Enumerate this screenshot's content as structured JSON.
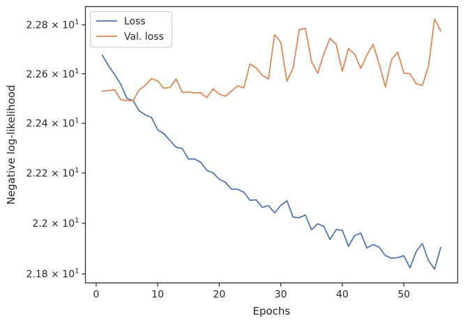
{
  "chart_data": {
    "type": "line",
    "title": "",
    "xlabel": "Epochs",
    "ylabel": "Negative log-likelihood",
    "xlim": [
      -1.75,
      58.75
    ],
    "ylim": [
      21.765,
      22.875
    ],
    "yscale": "log",
    "grid": false,
    "legend": "top-left",
    "x_ticks": [
      0,
      10,
      20,
      30,
      40,
      50
    ],
    "x_tick_labels": [
      "0",
      "10",
      "20",
      "30",
      "40",
      "50"
    ],
    "y_ticks": [
      21.8,
      22.0,
      22.2,
      22.4,
      22.6,
      22.8
    ],
    "y_tick_mantissas": [
      "2.18",
      "2.2",
      "2.22",
      "2.24",
      "2.26",
      "2.28"
    ],
    "y_tick_times": "×",
    "y_tick_base": "10",
    "y_tick_exp": "1",
    "series": [
      {
        "name": "Loss",
        "color": "#4c72b0",
        "x": [
          1,
          2,
          3,
          4,
          5,
          6,
          7,
          8,
          9,
          10,
          11,
          12,
          13,
          14,
          15,
          16,
          17,
          18,
          19,
          20,
          21,
          22,
          23,
          24,
          25,
          26,
          27,
          28,
          29,
          30,
          31,
          32,
          33,
          34,
          35,
          36,
          37,
          38,
          39,
          40,
          41,
          42,
          43,
          44,
          45,
          46,
          47,
          48,
          49,
          50,
          51,
          52,
          53,
          54,
          55,
          56
        ],
        "y": [
          22.676,
          22.633,
          22.597,
          22.557,
          22.5,
          22.491,
          22.45,
          22.433,
          22.423,
          22.373,
          22.358,
          22.33,
          22.303,
          22.298,
          22.256,
          22.256,
          22.243,
          22.21,
          22.2,
          22.175,
          22.163,
          22.135,
          22.135,
          22.123,
          22.091,
          22.093,
          22.063,
          22.07,
          22.041,
          22.071,
          22.089,
          22.024,
          22.022,
          22.033,
          21.974,
          21.998,
          21.987,
          21.936,
          21.975,
          21.972,
          21.909,
          21.951,
          21.961,
          21.902,
          21.916,
          21.905,
          21.872,
          21.862,
          21.864,
          21.872,
          21.824,
          21.888,
          21.92,
          21.853,
          21.819,
          21.905
        ]
      },
      {
        "name": "Val. loss",
        "color": "#dd8452",
        "x": [
          1,
          2,
          3,
          4,
          5,
          6,
          7,
          8,
          9,
          10,
          11,
          12,
          13,
          14,
          15,
          16,
          17,
          18,
          19,
          20,
          21,
          22,
          23,
          24,
          25,
          26,
          27,
          28,
          29,
          30,
          31,
          32,
          33,
          34,
          35,
          36,
          37,
          38,
          39,
          40,
          41,
          42,
          43,
          44,
          45,
          46,
          47,
          48,
          49,
          50,
          51,
          52,
          53,
          54,
          55,
          56
        ],
        "y": [
          22.529,
          22.532,
          22.535,
          22.495,
          22.491,
          22.491,
          22.535,
          22.554,
          22.581,
          22.571,
          22.541,
          22.545,
          22.579,
          22.524,
          22.526,
          22.522,
          22.523,
          22.503,
          22.539,
          22.517,
          22.509,
          22.53,
          22.551,
          22.543,
          22.64,
          22.624,
          22.594,
          22.579,
          22.76,
          22.728,
          22.57,
          22.624,
          22.78,
          22.786,
          22.65,
          22.602,
          22.681,
          22.745,
          22.72,
          22.61,
          22.703,
          22.68,
          22.622,
          22.677,
          22.72,
          22.64,
          22.547,
          22.658,
          22.688,
          22.603,
          22.6,
          22.56,
          22.552,
          22.63,
          22.824,
          22.774
        ]
      }
    ]
  }
}
